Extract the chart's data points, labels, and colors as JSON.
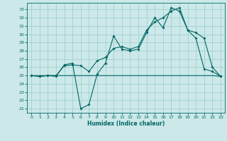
{
  "title": "",
  "xlabel": "Humidex (Indice chaleur)",
  "xlim": [
    -0.5,
    23.5
  ],
  "ylim": [
    20.5,
    33.8
  ],
  "yticks": [
    21,
    22,
    23,
    24,
    25,
    26,
    27,
    28,
    29,
    30,
    31,
    32,
    33
  ],
  "xticks": [
    0,
    1,
    2,
    3,
    4,
    5,
    6,
    7,
    8,
    9,
    10,
    11,
    12,
    13,
    14,
    15,
    16,
    17,
    18,
    19,
    20,
    21,
    22,
    23
  ],
  "bg_color": "#cce8e8",
  "line_color": "#006666",
  "grid_color": "#99cccc",
  "line1_y": [
    25.0,
    25.0,
    25.0,
    25.0,
    25.0,
    25.0,
    25.0,
    25.0,
    25.0,
    25.0,
    25.0,
    25.0,
    25.0,
    25.0,
    25.0,
    25.0,
    25.0,
    25.0,
    25.0,
    25.0,
    25.0,
    25.0,
    25.0,
    24.9
  ],
  "line2_y": [
    25.0,
    24.9,
    25.0,
    24.9,
    26.3,
    26.5,
    21.0,
    21.5,
    25.2,
    26.5,
    29.8,
    28.2,
    28.0,
    28.2,
    30.2,
    32.0,
    30.8,
    33.2,
    32.8,
    30.5,
    29.5,
    25.8,
    25.5,
    24.9
  ],
  "line3_y": [
    25.0,
    24.9,
    25.0,
    25.0,
    26.2,
    26.3,
    26.2,
    25.5,
    26.8,
    27.2,
    28.3,
    28.5,
    28.2,
    28.5,
    30.5,
    31.5,
    32.0,
    32.8,
    33.2,
    30.5,
    30.2,
    29.5,
    26.0,
    24.9
  ]
}
